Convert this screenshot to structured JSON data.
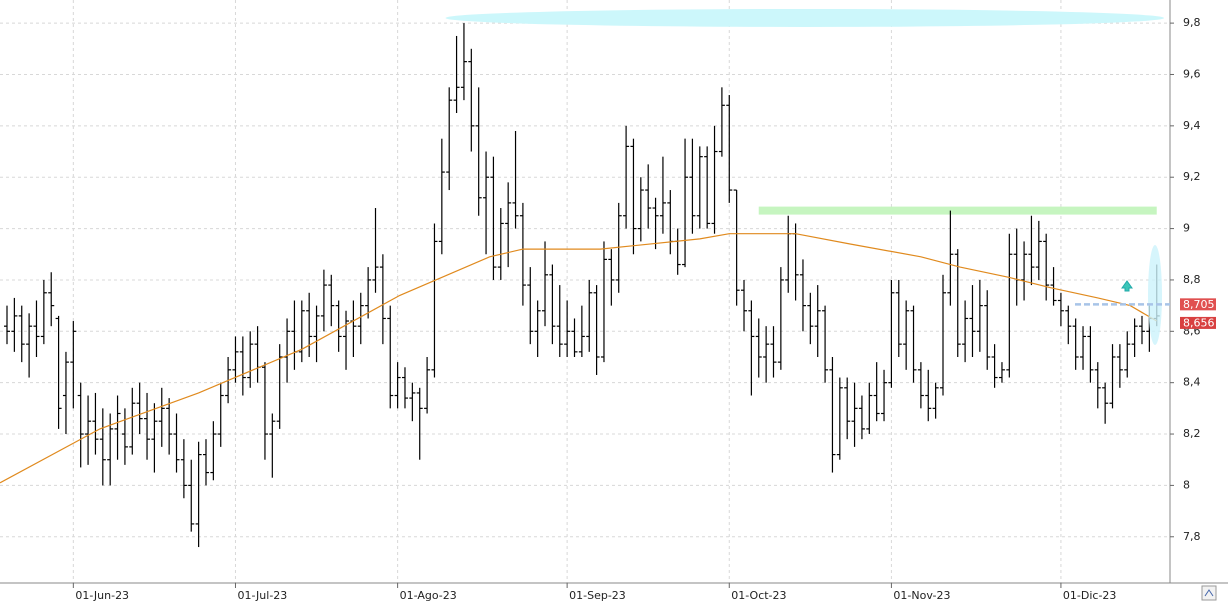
{
  "chart_data": {
    "type": "ohlc",
    "xlim": [
      -0.95,
      157.8
    ],
    "ylim": [
      7.62,
      9.89
    ],
    "xticks": [
      {
        "value": 9,
        "label": "01-Jun-23"
      },
      {
        "value": 31,
        "label": "01-Jul-23"
      },
      {
        "value": 53,
        "label": "01-Ago-23"
      },
      {
        "value": 76,
        "label": "01-Sep-23"
      },
      {
        "value": 98,
        "label": "01-Oct-23"
      },
      {
        "value": 120,
        "label": "01-Nov-23"
      },
      {
        "value": 143,
        "label": "01-Dic-23"
      }
    ],
    "yticks": [
      {
        "value": 7.8,
        "label": "7,8"
      },
      8,
      {
        "value": 8.2,
        "label": "8,2"
      },
      {
        "value": 8.4,
        "label": "8,4"
      },
      {
        "value": 8.6,
        "label": "8,6"
      },
      {
        "value": 8.8,
        "label": "8,8"
      },
      9,
      {
        "value": 9.2,
        "label": "9,2"
      },
      {
        "value": 9.4,
        "label": "9,4"
      },
      {
        "value": 9.6,
        "label": "9,6"
      },
      {
        "value": 9.8,
        "label": "9,8"
      }
    ],
    "grid": true,
    "color": "#000000",
    "ohlc": [
      [
        8.62,
        8.7,
        8.55,
        8.6
      ],
      [
        8.6,
        8.73,
        8.52,
        8.66
      ],
      [
        8.66,
        8.7,
        8.48,
        8.55
      ],
      [
        8.55,
        8.67,
        8.42,
        8.62
      ],
      [
        8.62,
        8.72,
        8.5,
        8.58
      ],
      [
        8.58,
        8.8,
        8.55,
        8.75
      ],
      [
        8.75,
        8.83,
        8.62,
        8.7
      ],
      [
        8.65,
        8.66,
        8.22,
        8.3
      ],
      [
        8.35,
        8.52,
        8.2,
        8.48
      ],
      [
        8.48,
        8.64,
        8.3,
        8.6
      ],
      [
        8.35,
        8.4,
        8.07,
        8.2
      ],
      [
        8.2,
        8.35,
        8.08,
        8.25
      ],
      [
        8.25,
        8.36,
        8.12,
        8.18
      ],
      [
        8.18,
        8.3,
        8.0,
        8.1
      ],
      [
        8.1,
        8.28,
        8.0,
        8.22
      ],
      [
        8.22,
        8.35,
        8.1,
        8.28
      ],
      [
        8.2,
        8.3,
        8.08,
        8.15
      ],
      [
        8.15,
        8.38,
        8.12,
        8.32
      ],
      [
        8.32,
        8.4,
        8.2,
        8.26
      ],
      [
        8.26,
        8.36,
        8.1,
        8.18
      ],
      [
        8.18,
        8.32,
        8.05,
        8.25
      ],
      [
        8.25,
        8.38,
        8.15,
        8.3
      ],
      [
        8.3,
        8.34,
        8.12,
        8.2
      ],
      [
        8.2,
        8.28,
        8.05,
        8.1
      ],
      [
        8.1,
        8.18,
        7.95,
        8.0
      ],
      [
        8.0,
        8.1,
        7.82,
        7.85
      ],
      [
        7.85,
        8.17,
        7.76,
        8.12
      ],
      [
        8.12,
        8.18,
        8.0,
        8.05
      ],
      [
        8.05,
        8.25,
        8.02,
        8.2
      ],
      [
        8.2,
        8.4,
        8.15,
        8.35
      ],
      [
        8.35,
        8.5,
        8.32,
        8.45
      ],
      [
        8.45,
        8.58,
        8.4,
        8.52
      ],
      [
        8.52,
        8.58,
        8.35,
        8.42
      ],
      [
        8.42,
        8.6,
        8.38,
        8.55
      ],
      [
        8.55,
        8.62,
        8.4,
        8.46
      ],
      [
        8.46,
        8.48,
        8.1,
        8.2
      ],
      [
        8.2,
        8.28,
        8.03,
        8.25
      ],
      [
        8.25,
        8.55,
        8.22,
        8.5
      ],
      [
        8.5,
        8.65,
        8.4,
        8.6
      ],
      [
        8.6,
        8.72,
        8.45,
        8.52
      ],
      [
        8.52,
        8.72,
        8.48,
        8.68
      ],
      [
        8.68,
        8.75,
        8.5,
        8.58
      ],
      [
        8.58,
        8.7,
        8.48,
        8.66
      ],
      [
        8.66,
        8.84,
        8.6,
        8.78
      ],
      [
        8.78,
        8.82,
        8.62,
        8.7
      ],
      [
        8.7,
        8.72,
        8.52,
        8.58
      ],
      [
        8.58,
        8.68,
        8.45,
        8.64
      ],
      [
        8.64,
        8.72,
        8.5,
        8.62
      ],
      [
        8.62,
        8.75,
        8.55,
        8.7
      ],
      [
        8.7,
        8.85,
        8.65,
        8.8
      ],
      [
        8.8,
        9.08,
        8.75,
        8.85
      ],
      [
        8.85,
        8.9,
        8.55,
        8.65
      ],
      [
        8.65,
        8.7,
        8.3,
        8.35
      ],
      [
        8.35,
        8.48,
        8.3,
        8.42
      ],
      [
        8.42,
        8.46,
        8.3,
        8.34
      ],
      [
        8.34,
        8.4,
        8.25,
        8.36
      ],
      [
        8.36,
        8.38,
        8.1,
        8.3
      ],
      [
        8.3,
        8.5,
        8.28,
        8.45
      ],
      [
        8.45,
        9.02,
        8.42,
        8.95
      ],
      [
        8.95,
        9.35,
        8.9,
        9.22
      ],
      [
        9.22,
        9.55,
        9.15,
        9.5
      ],
      [
        9.5,
        9.75,
        9.45,
        9.55
      ],
      [
        9.55,
        9.8,
        9.5,
        9.65
      ],
      [
        9.65,
        9.7,
        9.3,
        9.4
      ],
      [
        9.4,
        9.55,
        9.05,
        9.12
      ],
      [
        9.12,
        9.3,
        8.9,
        9.2
      ],
      [
        9.2,
        9.28,
        8.8,
        8.85
      ],
      [
        8.85,
        9.08,
        8.8,
        9.02
      ],
      [
        9.02,
        9.18,
        8.85,
        9.1
      ],
      [
        9.1,
        9.38,
        9.0,
        9.05
      ],
      [
        9.05,
        9.1,
        8.7,
        8.78
      ],
      [
        8.78,
        8.85,
        8.55,
        8.6
      ],
      [
        8.6,
        8.72,
        8.5,
        8.68
      ],
      [
        8.68,
        8.95,
        8.62,
        8.82
      ],
      [
        8.82,
        8.86,
        8.55,
        8.62
      ],
      [
        8.62,
        8.78,
        8.5,
        8.55
      ],
      [
        8.55,
        8.72,
        8.5,
        8.6
      ],
      [
        8.6,
        8.65,
        8.5,
        8.52
      ],
      [
        8.52,
        8.7,
        8.5,
        8.58
      ],
      [
        8.58,
        8.8,
        8.52,
        8.75
      ],
      [
        8.75,
        8.78,
        8.43,
        8.5
      ],
      [
        8.5,
        8.95,
        8.48,
        8.88
      ],
      [
        8.88,
        8.92,
        8.7,
        8.8
      ],
      [
        8.8,
        9.1,
        8.75,
        9.05
      ],
      [
        9.05,
        9.4,
        9.0,
        9.32
      ],
      [
        9.32,
        9.35,
        8.9,
        9.0
      ],
      [
        9.0,
        9.2,
        8.95,
        9.15
      ],
      [
        9.15,
        9.25,
        9.0,
        9.08
      ],
      [
        9.08,
        9.12,
        8.92,
        9.05
      ],
      [
        9.05,
        9.28,
        8.98,
        9.1
      ],
      [
        9.1,
        9.15,
        8.9,
        8.95
      ],
      [
        8.95,
        9.0,
        8.82,
        8.86
      ],
      [
        8.86,
        9.35,
        8.85,
        9.2
      ],
      [
        9.2,
        9.35,
        8.98,
        9.05
      ],
      [
        9.05,
        9.32,
        9.0,
        9.28
      ],
      [
        9.28,
        9.32,
        9.0,
        9.02
      ],
      [
        9.02,
        9.4,
        8.98,
        9.3
      ],
      [
        9.3,
        9.55,
        9.28,
        9.48
      ],
      [
        9.48,
        9.52,
        9.1,
        9.15
      ],
      [
        9.15,
        9.15,
        8.7,
        8.76
      ],
      [
        8.76,
        8.8,
        8.6,
        8.68
      ],
      [
        8.68,
        8.72,
        8.35,
        8.58
      ],
      [
        8.58,
        8.65,
        8.42,
        8.5
      ],
      [
        8.5,
        8.62,
        8.4,
        8.55
      ],
      [
        8.55,
        8.62,
        8.42,
        8.48
      ],
      [
        8.48,
        8.85,
        8.45,
        8.8
      ],
      [
        8.8,
        9.05,
        8.75,
        8.98
      ],
      [
        8.98,
        9.02,
        8.72,
        8.82
      ],
      [
        8.82,
        8.88,
        8.6,
        8.7
      ],
      [
        8.7,
        8.75,
        8.55,
        8.62
      ],
      [
        8.62,
        8.78,
        8.5,
        8.68
      ],
      [
        8.68,
        8.7,
        8.4,
        8.45
      ],
      [
        8.45,
        8.5,
        8.05,
        8.12
      ],
      [
        8.12,
        8.42,
        8.1,
        8.38
      ],
      [
        8.38,
        8.42,
        8.18,
        8.25
      ],
      [
        8.25,
        8.4,
        8.15,
        8.3
      ],
      [
        8.3,
        8.35,
        8.18,
        8.22
      ],
      [
        8.22,
        8.4,
        8.2,
        8.35
      ],
      [
        8.35,
        8.48,
        8.25,
        8.28
      ],
      [
        8.28,
        8.45,
        8.25,
        8.4
      ],
      [
        8.4,
        8.8,
        8.38,
        8.75
      ],
      [
        8.75,
        8.8,
        8.5,
        8.55
      ],
      [
        8.55,
        8.72,
        8.45,
        8.68
      ],
      [
        8.68,
        8.7,
        8.4,
        8.45
      ],
      [
        8.45,
        8.48,
        8.3,
        8.35
      ],
      [
        8.35,
        8.45,
        8.25,
        8.3
      ],
      [
        8.3,
        8.4,
        8.26,
        8.38
      ],
      [
        8.38,
        8.82,
        8.35,
        8.75
      ],
      [
        8.75,
        9.07,
        8.7,
        8.9
      ],
      [
        8.9,
        8.92,
        8.5,
        8.55
      ],
      [
        8.55,
        8.72,
        8.48,
        8.65
      ],
      [
        8.65,
        8.78,
        8.5,
        8.6
      ],
      [
        8.6,
        8.8,
        8.52,
        8.7
      ],
      [
        8.7,
        8.76,
        8.45,
        8.5
      ],
      [
        8.5,
        8.55,
        8.38,
        8.42
      ],
      [
        8.42,
        8.48,
        8.4,
        8.45
      ],
      [
        8.45,
        8.98,
        8.42,
        8.9
      ],
      [
        8.9,
        9.0,
        8.7,
        8.8
      ],
      [
        8.8,
        8.95,
        8.72,
        8.9
      ],
      [
        8.9,
        9.05,
        8.78,
        8.85
      ],
      [
        8.85,
        9.03,
        8.8,
        8.95
      ],
      [
        8.95,
        8.98,
        8.72,
        8.78
      ],
      [
        8.78,
        8.85,
        8.7,
        8.72
      ],
      [
        8.72,
        8.75,
        8.62,
        8.68
      ],
      [
        8.68,
        8.7,
        8.55,
        8.62
      ],
      [
        8.62,
        8.65,
        8.45,
        8.5
      ],
      [
        8.5,
        8.62,
        8.45,
        8.58
      ],
      [
        8.58,
        8.62,
        8.4,
        8.45
      ],
      [
        8.45,
        8.48,
        8.3,
        8.38
      ],
      [
        8.38,
        8.4,
        8.24,
        8.32
      ],
      [
        8.32,
        8.55,
        8.3,
        8.5
      ],
      [
        8.5,
        8.55,
        8.38,
        8.45
      ],
      [
        8.45,
        8.6,
        8.42,
        8.55
      ],
      [
        8.55,
        8.65,
        8.5,
        8.62
      ],
      [
        8.62,
        8.66,
        8.55,
        8.6
      ],
      [
        8.6,
        8.7,
        8.52,
        8.65
      ],
      [
        8.65,
        8.86,
        8.62,
        8.66
      ]
    ],
    "moving_average": {
      "color": "#e08a1e",
      "x": [
        -0.95,
        12.6,
        26,
        40,
        53.3,
        65.5,
        70,
        80.5,
        94,
        98,
        107,
        114.4,
        124,
        129.3,
        136,
        141.5,
        148,
        152.4,
        156
      ],
      "values": [
        8.01,
        8.22,
        8.36,
        8.53,
        8.74,
        8.89,
        8.92,
        8.92,
        8.96,
        8.98,
        8.98,
        8.94,
        8.89,
        8.85,
        8.81,
        8.77,
        8.73,
        8.7,
        8.64
      ]
    },
    "drawings": [
      {
        "type": "ellipse",
        "color": "#ccf7fb",
        "y": 9.82,
        "x": [
          59.5,
          157
        ]
      },
      {
        "type": "band",
        "color": "#c6f5c0",
        "y": 9.07,
        "x": [
          102,
          156
        ]
      }
    ],
    "price_labels": [
      {
        "value": 8.705,
        "label": "8,705"
      },
      {
        "value": 8.656,
        "label": "8,656"
      }
    ]
  }
}
